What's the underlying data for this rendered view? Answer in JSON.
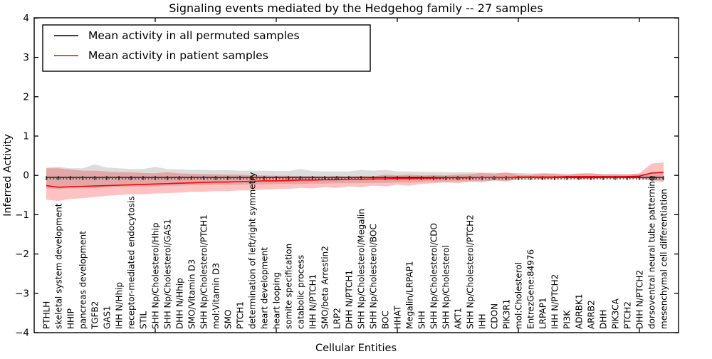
{
  "chart_data": {
    "type": "line",
    "title": "Signaling events mediated by the Hedgehog family -- 27 samples",
    "xlabel": "Cellular Entities",
    "ylabel": "Inferred Activity",
    "ylim": [
      -4,
      4
    ],
    "yticks": [
      4,
      3,
      2,
      1,
      0,
      -1,
      -2,
      -3,
      -4
    ],
    "grid": false,
    "legend_position": "upper left",
    "categories": [
      "PTHLH",
      "skeletal system development",
      "HHIP",
      "pancreas development",
      "TGFB2",
      "GAS1",
      "IHH N/Hhip",
      "receptor-mediated endocytosis",
      "STIL",
      "SHH Np/Cholesterol/Hhip",
      "SHH Np/Cholesterol/GAS1",
      "DHH N/Hhip",
      "SMO/Vitamin D3",
      "SHH Np/Cholesterol/PTCH1",
      "mol:Vitamin D3",
      "SMO",
      "PTCH1",
      "determination of left/right symmetry",
      "heart development",
      "heart looping",
      "somite specification",
      "catabolic process",
      "IHH N/PTCH1",
      "SMO/beta Arrestin2",
      "LRP2",
      "DHH N/PTCH1",
      "SHH Np/Cholesterol/Megalin",
      "SHH Np/Cholesterol/BOC",
      "BOC",
      "HHAT",
      "Megalin/LRPAP1",
      "SHH",
      "SHH Np/Cholesterol/CDO",
      "SHH Np/Cholesterol",
      "AKT1",
      "SHH Np/Cholesterol/PTCH2",
      "IHH",
      "CDON",
      "PIK3R1",
      "mol:Cholesterol",
      "EntrezGene:84976",
      "LRPAP1",
      "IHH N/PTCH2",
      "PI3K",
      "ADRBK1",
      "ARRB2",
      "DHH",
      "PIK3CA",
      "PTCH2",
      "DHH N/PTCH2",
      "dorsoventral neural tube patterning",
      "mesenchymal cell differentiation"
    ],
    "series": [
      {
        "name": "Mean activity in all permuted samples",
        "color": "#000000",
        "values": [
          -0.05,
          -0.05,
          -0.05,
          -0.05,
          -0.05,
          -0.05,
          -0.05,
          -0.05,
          -0.05,
          -0.05,
          -0.05,
          -0.05,
          -0.05,
          -0.05,
          -0.05,
          -0.05,
          -0.05,
          -0.05,
          -0.05,
          -0.05,
          -0.05,
          -0.05,
          -0.05,
          -0.05,
          -0.05,
          -0.05,
          -0.05,
          -0.05,
          -0.05,
          -0.05,
          -0.05,
          -0.05,
          -0.05,
          -0.05,
          -0.05,
          -0.05,
          -0.05,
          -0.05,
          -0.05,
          -0.05,
          -0.05,
          -0.05,
          -0.05,
          -0.05,
          -0.05,
          -0.05,
          -0.05,
          -0.05,
          -0.05,
          -0.05,
          -0.05,
          -0.05
        ]
      },
      {
        "name": "Mean activity in patient samples",
        "color": "#ff0000",
        "values": [
          -0.26,
          -0.3,
          -0.29,
          -0.28,
          -0.27,
          -0.26,
          -0.25,
          -0.24,
          -0.23,
          -0.22,
          -0.21,
          -0.2,
          -0.19,
          -0.18,
          -0.17,
          -0.17,
          -0.16,
          -0.15,
          -0.14,
          -0.14,
          -0.13,
          -0.12,
          -0.12,
          -0.11,
          -0.11,
          -0.1,
          -0.1,
          -0.09,
          -0.09,
          -0.08,
          -0.08,
          -0.07,
          -0.07,
          -0.06,
          -0.06,
          -0.06,
          -0.05,
          -0.05,
          -0.05,
          -0.04,
          -0.04,
          -0.04,
          -0.04,
          -0.03,
          -0.03,
          -0.03,
          -0.03,
          -0.03,
          -0.03,
          -0.02,
          0.06,
          0.08
        ]
      }
    ],
    "bands": [
      {
        "name": "permuted-samples-std-band",
        "color": "#8c8c8c",
        "opacity": 0.3,
        "upper": [
          0.2,
          0.22,
          0.18,
          0.18,
          0.28,
          0.2,
          0.18,
          0.16,
          0.16,
          0.22,
          0.16,
          0.15,
          0.14,
          0.14,
          0.13,
          0.13,
          0.12,
          0.12,
          0.12,
          0.11,
          0.11,
          0.16,
          0.11,
          0.1,
          0.1,
          0.1,
          0.14,
          0.12,
          0.14,
          0.1,
          0.1,
          0.09,
          0.09,
          0.08,
          0.08,
          0.08,
          0.07,
          0.07,
          0.06,
          0.06,
          0.05,
          0.05,
          0.05,
          0.04,
          0.04,
          0.04,
          0.04,
          0.03,
          0.03,
          0.04,
          0.05,
          0.06
        ],
        "lower": [
          -0.33,
          -0.35,
          -0.32,
          -0.3,
          -0.32,
          -0.3,
          -0.3,
          -0.28,
          -0.28,
          -0.28,
          -0.26,
          -0.26,
          -0.25,
          -0.25,
          -0.24,
          -0.24,
          -0.24,
          -0.23,
          -0.23,
          -0.22,
          -0.22,
          -0.22,
          -0.21,
          -0.21,
          -0.2,
          -0.2,
          -0.2,
          -0.19,
          -0.19,
          -0.18,
          -0.18,
          -0.17,
          -0.16,
          -0.16,
          -0.15,
          -0.15,
          -0.14,
          -0.14,
          -0.13,
          -0.12,
          -0.12,
          -0.11,
          -0.11,
          -0.1,
          -0.1,
          -0.1,
          -0.09,
          -0.09,
          -0.09,
          -0.1,
          -0.14,
          -0.18
        ]
      },
      {
        "name": "patient-samples-std-band",
        "color": "#ff0000",
        "opacity": 0.24,
        "upper": [
          0.18,
          0.18,
          0.15,
          0.12,
          0.12,
          0.1,
          0.08,
          0.08,
          0.06,
          0.05,
          0.08,
          0.05,
          0.04,
          0.03,
          0.03,
          0.02,
          0.02,
          0.0,
          0.0,
          -0.01,
          -0.01,
          -0.02,
          -0.02,
          -0.03,
          -0.02,
          -0.03,
          -0.02,
          -0.03,
          0.02,
          0.0,
          0.02,
          0.0,
          0.01,
          0.0,
          0.02,
          0.03,
          0.06,
          0.04,
          0.08,
          0.02,
          0.01,
          0.05,
          0.04,
          0.01,
          0.05,
          0.06,
          0.02,
          0.03,
          0.02,
          0.05,
          0.3,
          0.33
        ],
        "lower": [
          -0.62,
          -0.65,
          -0.6,
          -0.58,
          -0.55,
          -0.52,
          -0.5,
          -0.48,
          -0.48,
          -0.46,
          -0.45,
          -0.44,
          -0.42,
          -0.42,
          -0.4,
          -0.4,
          -0.38,
          -0.38,
          -0.36,
          -0.35,
          -0.34,
          -0.32,
          -0.33,
          -0.3,
          -0.32,
          -0.28,
          -0.3,
          -0.26,
          -0.28,
          -0.24,
          -0.26,
          -0.22,
          -0.2,
          -0.18,
          -0.2,
          -0.16,
          -0.18,
          -0.12,
          -0.16,
          -0.08,
          -0.06,
          -0.1,
          -0.08,
          -0.04,
          -0.09,
          -0.1,
          -0.05,
          -0.06,
          -0.04,
          -0.06,
          -0.12,
          -0.14
        ]
      }
    ]
  }
}
